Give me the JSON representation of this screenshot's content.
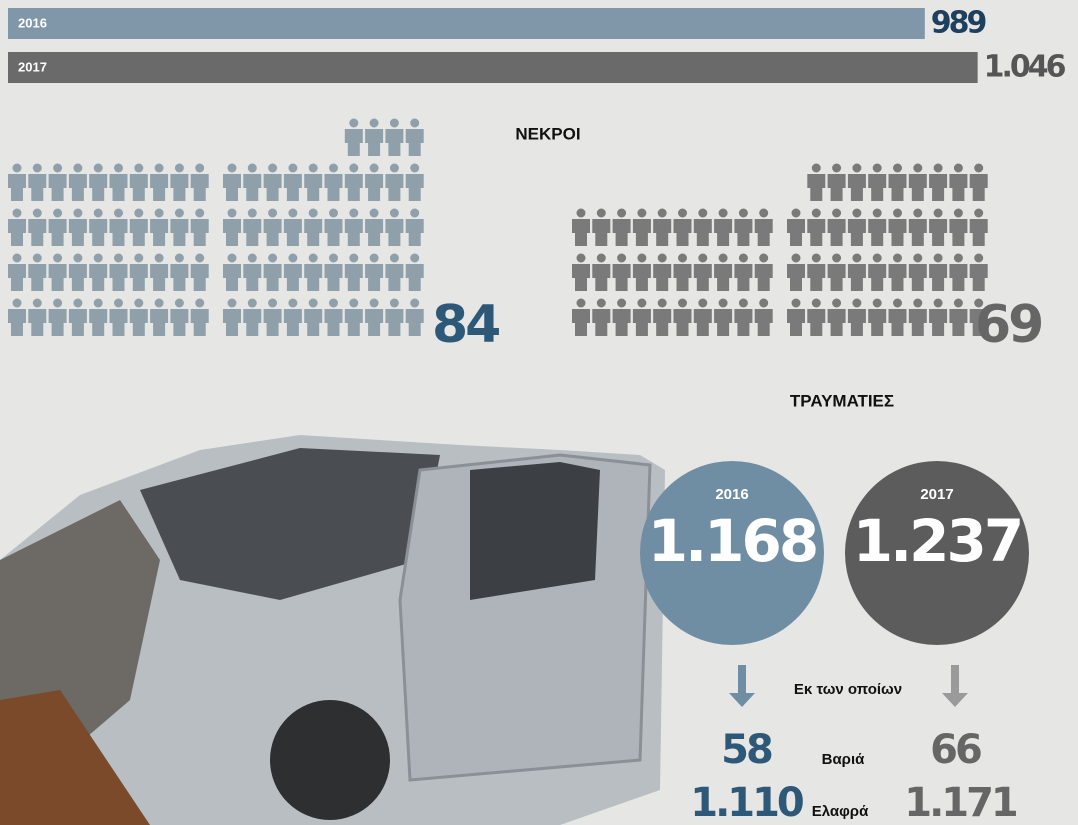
{
  "bars": [
    {
      "year": "2016",
      "value": 989,
      "value_label": "989"
    },
    {
      "year": "2017",
      "value": 1046,
      "value_label": "1.046"
    }
  ],
  "deaths": {
    "title": "ΝΕΚΡΟΙ",
    "groups": [
      {
        "value": 84
      },
      {
        "value": 69
      }
    ]
  },
  "injuries": {
    "title": "ΤΡΑΥΜΑΤΙΕΣ",
    "note": "Εκ των οποίων",
    "serious_label": "Βαριά",
    "light_label": "Ελαφρά",
    "circles": [
      {
        "year": "2016",
        "total": "1.168",
        "serious": "58",
        "light": "1.110"
      },
      {
        "year": "2017",
        "total": "1.237",
        "serious": "66",
        "light": "1.171"
      }
    ]
  }
}
